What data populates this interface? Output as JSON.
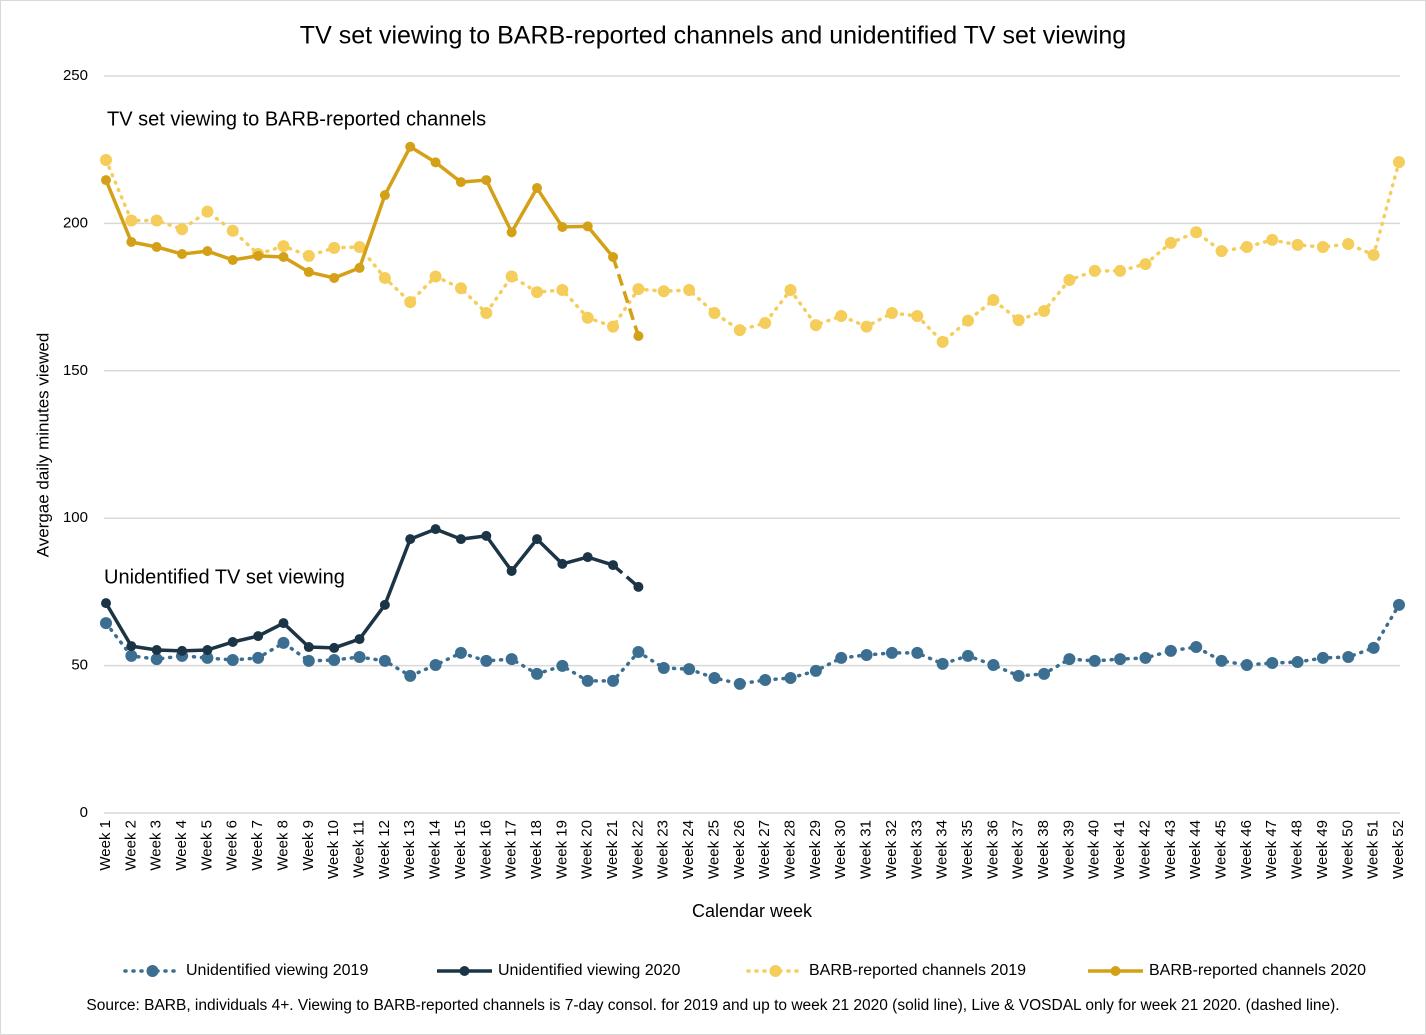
{
  "chart_data": {
    "type": "line",
    "title": "TV set viewing to BARB-reported channels and unidentified TV set viewing",
    "y_label": "Avergae daily minutes viewed",
    "x_label": "Calendar week",
    "annotations": [
      "TV set viewing to BARB-reported channels",
      "Unidentified TV set viewing"
    ],
    "source": "Source: BARB, individuals 4+. Viewing to BARB-reported channels is 7-day consol. for 2019 and up to week 21 2020 (solid line), Live & VOSDAL only for week 21 2020. (dashed line).",
    "categories": [
      "Week 1",
      "Week 2",
      "Week 3",
      "Week 4",
      "Week 5",
      "Week 6",
      "Week 7",
      "Week 8",
      "Week 9",
      "Week 10",
      "Week 11",
      "Week 12",
      "Week 13",
      "Week 14",
      "Week 15",
      "Week 16",
      "Week 17",
      "Week 18",
      "Week 19",
      "Week 20",
      "Week 21",
      "Week 22",
      "Week 23",
      "Week 24",
      "Week 25",
      "Week 26",
      "Week 27",
      "Week 28",
      "Week 29",
      "Week 30",
      "Week 31",
      "Week 32",
      "Week 33",
      "Week 34",
      "Week 35",
      "Week 36",
      "Week 37",
      "Week 38",
      "Week 39",
      "Week 40",
      "Week 41",
      "Week 42",
      "Week 43",
      "Week 44",
      "Week 45",
      "Week 46",
      "Week 47",
      "Week 48",
      "Week 49",
      "Week 50",
      "Week 51",
      "Week 52"
    ],
    "ylim": [
      0,
      250
    ],
    "yticks": [
      0,
      50,
      100,
      150,
      200,
      250
    ],
    "grid": true,
    "legend": "bottom",
    "series": [
      {
        "name": "Unidentified viewing 2019",
        "color": "#3b6e90",
        "style": "dotted",
        "values": [
          64.4,
          53.3,
          52.2,
          53.3,
          52.6,
          51.9,
          52.6,
          57.7,
          51.6,
          51.9,
          52.9,
          51.6,
          46.5,
          50.2,
          54.3,
          51.6,
          52.2,
          47.2,
          49.9,
          44.8,
          44.8,
          54.6,
          49.2,
          48.8,
          45.8,
          43.8,
          45.1,
          45.8,
          48.2,
          52.6,
          53.6,
          54.3,
          54.3,
          50.6,
          53.3,
          50.2,
          46.5,
          47.2,
          52.2,
          51.6,
          52.2,
          52.6,
          55,
          56.3,
          51.6,
          50.2,
          50.9,
          51.2,
          52.6,
          52.9,
          56,
          70.6
        ]
      },
      {
        "name": "Unidentified viewing 2020",
        "color": "#1b3446",
        "style": "solid",
        "last_segment_dashed": true,
        "values": [
          71.2,
          56.6,
          55.3,
          55,
          55.3,
          58,
          60,
          64.4,
          56.3,
          56,
          59,
          70.6,
          92.9,
          96.3,
          92.9,
          94,
          82.1,
          92.9,
          84.5,
          86.8,
          84.1,
          76.7,
          null,
          null,
          null,
          null,
          null,
          null,
          null,
          null,
          null,
          null,
          null,
          null,
          null,
          null,
          null,
          null,
          null,
          null,
          null,
          null,
          null,
          null,
          null,
          null,
          null,
          null,
          null,
          null,
          null,
          null
        ]
      },
      {
        "name": "BARB-reported channels 2019",
        "color": "#f5cd5a",
        "style": "dotted",
        "values": [
          221.5,
          201,
          201,
          198,
          204,
          197.5,
          189.6,
          192.3,
          189,
          191.7,
          192,
          181.5,
          173.3,
          182,
          178,
          169.6,
          182,
          176.7,
          177.4,
          168,
          165,
          177.7,
          177,
          177.4,
          169.6,
          163.8,
          166.2,
          177.4,
          165.5,
          168.6,
          165,
          169.6,
          168.6,
          159.8,
          167,
          174,
          167.2,
          170.3,
          180.8,
          183.9,
          183.9,
          186.2,
          193.4,
          197,
          190.6,
          192,
          194.4,
          192.7,
          192,
          193,
          189.3,
          220.8
        ]
      },
      {
        "name": "BARB-reported channels 2020",
        "color": "#d4a017",
        "style": "solid",
        "last_segment_dashed": true,
        "values": [
          214.7,
          193.7,
          192,
          189.6,
          190.6,
          187.6,
          189,
          188.6,
          183.5,
          181.5,
          184.9,
          209.6,
          226,
          220.7,
          214,
          214.7,
          197,
          212,
          198.8,
          199,
          188.6,
          161.8,
          null,
          null,
          null,
          null,
          null,
          null,
          null,
          null,
          null,
          null,
          null,
          null,
          null,
          null,
          null,
          null,
          null,
          null,
          null,
          null,
          null,
          null,
          null,
          null,
          null,
          null,
          null,
          null,
          null,
          null
        ]
      }
    ]
  }
}
